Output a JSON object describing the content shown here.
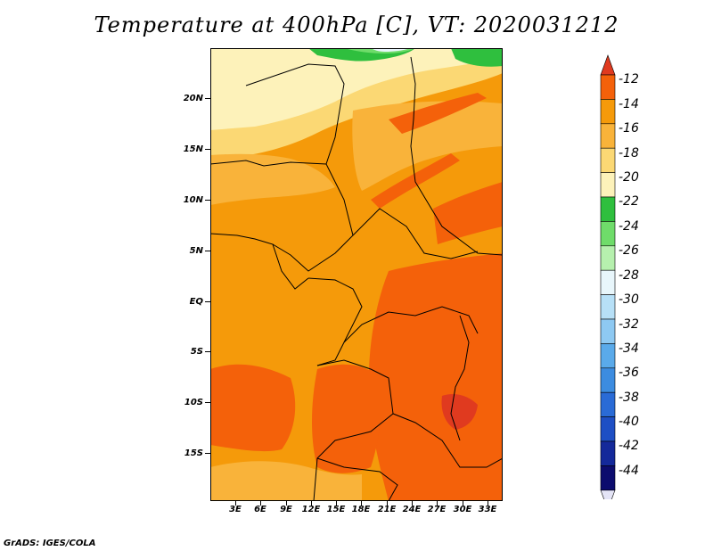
{
  "title": "Temperature at 400hPa [C], VT: 2020031212",
  "footer": "GrADS: IGES/COLA",
  "map": {
    "y_ticks": [
      "20N",
      "15N",
      "10N",
      "5N",
      "EQ",
      "5S",
      "10S",
      "15S"
    ],
    "x_ticks": [
      "3E",
      "6E",
      "9E",
      "12E",
      "15E",
      "18E",
      "21E",
      "24E",
      "27E",
      "30E",
      "33E"
    ]
  },
  "colorbar": {
    "labels": [
      "-12",
      "-14",
      "-16",
      "-18",
      "-20",
      "-22",
      "-24",
      "-26",
      "-28",
      "-30",
      "-32",
      "-34",
      "-36",
      "-38",
      "-40",
      "-42",
      "-44"
    ],
    "colors": [
      "#e03a1f",
      "#f4610a",
      "#f59a0a",
      "#f9b33a",
      "#fbd874",
      "#fdf2ba",
      "#2fbf3e",
      "#6fdc6a",
      "#b6f0ae",
      "#e8f6fb",
      "#b7e0f7",
      "#8ec9f2",
      "#5aaaea",
      "#3c8ce0",
      "#2a6bd6",
      "#1e4fc4",
      "#14299a",
      "#0c0c6e",
      "#e4e4f6"
    ]
  }
}
